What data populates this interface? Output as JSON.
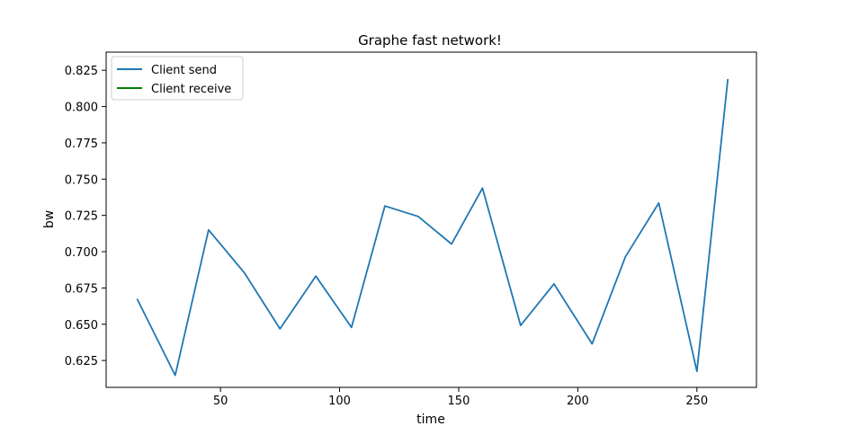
{
  "chart_data": {
    "type": "line",
    "title": "Graphe fast network!",
    "xlabel": "time",
    "ylabel": "bw",
    "xlim": [
      2,
      275
    ],
    "ylim": [
      0.6065,
      0.8375
    ],
    "xticks": [
      50,
      100,
      150,
      200,
      250
    ],
    "yticks": [
      0.625,
      0.65,
      0.675,
      0.7,
      0.725,
      0.75,
      0.775,
      0.8,
      0.825
    ],
    "ytick_labels": [
      "0.625",
      "0.650",
      "0.675",
      "0.700",
      "0.725",
      "0.750",
      "0.775",
      "0.800",
      "0.825"
    ],
    "grid": false,
    "legend_position": "top-left",
    "series": [
      {
        "name": "Client send",
        "color": "#1f77b4",
        "x": [
          15,
          31,
          45,
          60,
          75,
          90,
          105,
          119,
          133,
          147,
          160,
          176,
          190,
          206,
          220,
          234,
          250,
          263
        ],
        "y": [
          0.6675,
          0.6148,
          0.715,
          0.6855,
          0.6468,
          0.6832,
          0.6478,
          0.7315,
          0.7243,
          0.7053,
          0.7438,
          0.6492,
          0.6778,
          0.6365,
          0.6965,
          0.7335,
          0.6175,
          0.819
        ]
      },
      {
        "name": "Client receive",
        "color": "#008000",
        "x": [],
        "y": []
      }
    ]
  }
}
